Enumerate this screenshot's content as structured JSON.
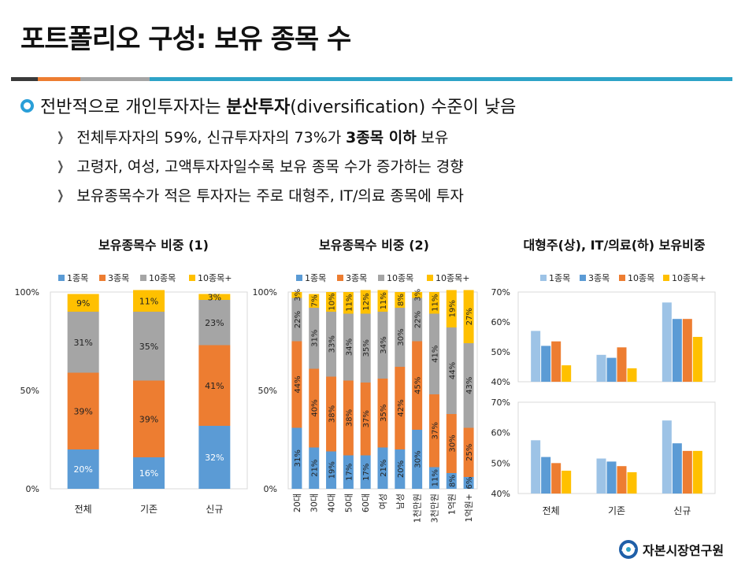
{
  "title": "포트폴리오 구성: 보유 종목 수",
  "bullet": {
    "pre": "전반적으로 개인투자자는 ",
    "bold": "분산투자",
    "post": "(diversification) 수준이 낮음"
  },
  "subs": [
    {
      "pre": "전체투자자의 59%, 신규투자자의 73%가 ",
      "bold": "3종목 이하",
      "post": " 보유"
    },
    {
      "pre": "고령자, 여성, 고액투자자일수록 보유 종목 수가 증가하는 경향",
      "bold": "",
      "post": ""
    },
    {
      "pre": "보유종목수가 적은 투자자는 주로 대형주, IT/의료 종목에 투자",
      "bold": "",
      "post": ""
    }
  ],
  "chart_titles": [
    "보유종목수 비중 (1)",
    "보유종목수 비중 (2)",
    "대형주(상), IT/의료(하) 보유비중"
  ],
  "logo_text": "자본시장연구원",
  "colors": {
    "c1": "#5b9bd5",
    "c3": "#ed7d31",
    "c10": "#a5a5a5",
    "c10p": "#ffc000",
    "light": "#9dc3e6",
    "rule": "#2ea3c7"
  },
  "chart_data": [
    {
      "type": "bar",
      "stacked": true,
      "title": "보유종목수 비중 (1)",
      "categories": [
        "전체",
        "기존",
        "신규"
      ],
      "series": [
        {
          "name": "1종목",
          "values": [
            20,
            16,
            32
          ]
        },
        {
          "name": "3종목",
          "values": [
            39,
            39,
            41
          ]
        },
        {
          "name": "10종목",
          "values": [
            31,
            35,
            23
          ]
        },
        {
          "name": "10종목+",
          "values": [
            9,
            11,
            3
          ]
        }
      ],
      "yticks": [
        "0%",
        "50%",
        "100%"
      ],
      "ylim": [
        0,
        100
      ]
    },
    {
      "type": "bar",
      "stacked": true,
      "title": "보유종목수 비중 (2)",
      "categories": [
        "20대",
        "30대",
        "40대",
        "50대",
        "60대",
        "여성",
        "남성",
        "1천만원",
        "3천만원",
        "1억원",
        "1억원+"
      ],
      "series": [
        {
          "name": "1종목",
          "values": [
            31,
            21,
            19,
            17,
            17,
            21,
            20,
            30,
            11,
            8,
            6
          ]
        },
        {
          "name": "3종목",
          "values": [
            44,
            40,
            38,
            38,
            37,
            35,
            42,
            45,
            37,
            30,
            25
          ]
        },
        {
          "name": "10종목",
          "values": [
            22,
            31,
            33,
            34,
            35,
            34,
            30,
            22,
            41,
            44,
            43
          ]
        },
        {
          "name": "10종목+",
          "values": [
            3,
            7,
            10,
            11,
            12,
            11,
            8,
            3,
            11,
            19,
            27
          ]
        }
      ],
      "yticks": [
        "0%",
        "50%",
        "100%"
      ],
      "ylim": [
        0,
        100
      ]
    },
    {
      "type": "bar",
      "title": "대형주(상)",
      "categories": [
        "전체",
        "기존",
        "신규"
      ],
      "series": [
        {
          "name": "1종목",
          "values": [
            57,
            49,
            66.5
          ]
        },
        {
          "name": "3종목",
          "values": [
            52,
            48,
            61
          ]
        },
        {
          "name": "10종목",
          "values": [
            53.5,
            51.5,
            61
          ]
        },
        {
          "name": "10종목+",
          "values": [
            45.5,
            44.5,
            55
          ]
        }
      ],
      "yticks": [
        "40%",
        "50%",
        "60%",
        "70%"
      ],
      "ylim": [
        40,
        70
      ]
    },
    {
      "type": "bar",
      "title": "IT/의료(하)",
      "categories": [
        "전체",
        "기존",
        "신규"
      ],
      "series": [
        {
          "name": "1종목",
          "values": [
            57.5,
            51.5,
            64
          ]
        },
        {
          "name": "3종목",
          "values": [
            52,
            50.5,
            56.5
          ]
        },
        {
          "name": "10종목",
          "values": [
            50,
            49,
            54
          ]
        },
        {
          "name": "10종목+",
          "values": [
            47.5,
            47,
            54
          ]
        }
      ],
      "yticks": [
        "40%",
        "50%",
        "60%",
        "70%"
      ],
      "ylim": [
        40,
        70
      ]
    }
  ]
}
